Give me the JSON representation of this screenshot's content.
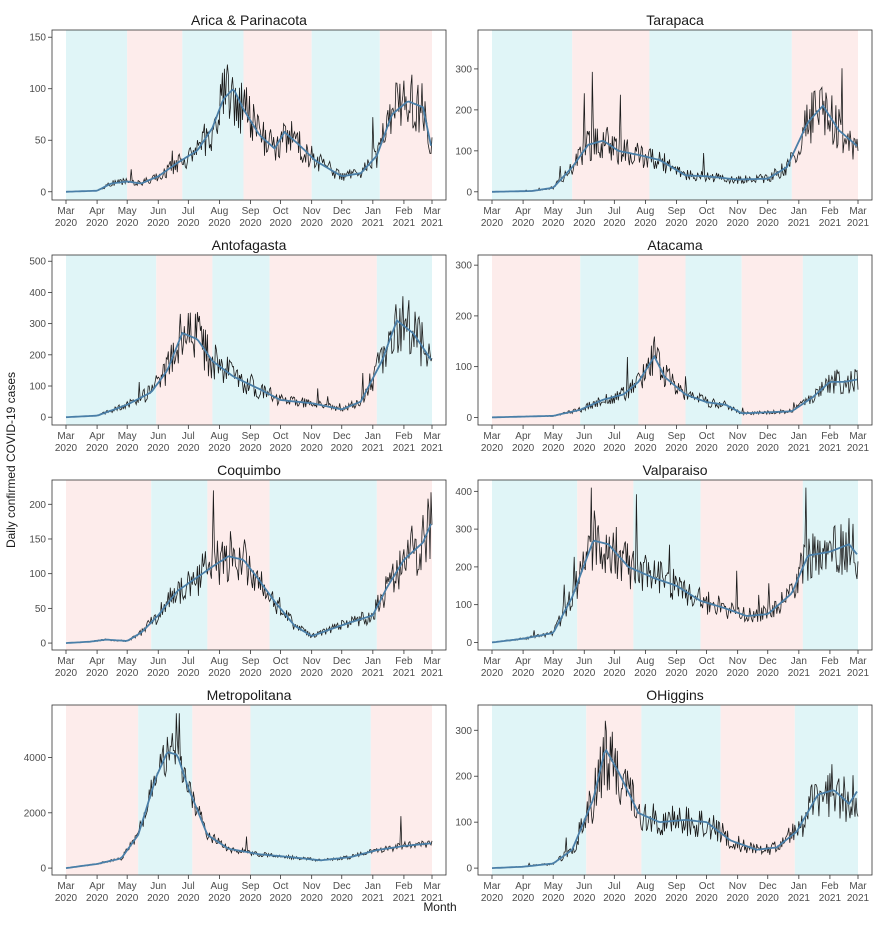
{
  "figure": {
    "ylabel": "Daily confirmed COVID-19 cases",
    "xlabel": "Month",
    "band_colors": {
      "red": "#fdeceb",
      "blue": "#e0f5f7"
    },
    "line_colors": {
      "daily": "#1c1c1c",
      "smooth": "#4a7fa8"
    },
    "x_tick_labels": [
      [
        "Mar",
        "2020"
      ],
      [
        "Apr",
        "2020"
      ],
      [
        "May",
        "2020"
      ],
      [
        "Jun",
        "2020"
      ],
      [
        "Jul",
        "2020"
      ],
      [
        "Aug",
        "2020"
      ],
      [
        "Sep",
        "2020"
      ],
      [
        "Oct",
        "2020"
      ],
      [
        "Nov",
        "2020"
      ],
      [
        "Dec",
        "2020"
      ],
      [
        "Jan",
        "2021"
      ],
      [
        "Feb",
        "2021"
      ],
      [
        "Mar",
        "2021"
      ]
    ]
  },
  "chart_data": [
    {
      "type": "line",
      "title": "Arica & Parinacota",
      "x_range": [
        "2020-03-01",
        "2021-03-01"
      ],
      "ylim": [
        -8,
        157
      ],
      "yticks": [
        0,
        50,
        100,
        150
      ],
      "bands": [
        {
          "start": "2020-03-01",
          "end": "2020-05-01",
          "color": "blue"
        },
        {
          "start": "2020-05-01",
          "end": "2020-06-25",
          "color": "red"
        },
        {
          "start": "2020-06-25",
          "end": "2020-08-25",
          "color": "blue"
        },
        {
          "start": "2020-08-25",
          "end": "2020-11-01",
          "color": "red"
        },
        {
          "start": "2020-11-01",
          "end": "2021-01-08",
          "color": "blue"
        },
        {
          "start": "2021-01-08",
          "end": "2021-03-01",
          "color": "red"
        }
      ],
      "trend": [
        [
          "2020-03-01",
          0
        ],
        [
          "2020-04-01",
          1
        ],
        [
          "2020-04-15",
          8
        ],
        [
          "2020-05-01",
          10
        ],
        [
          "2020-05-15",
          8
        ],
        [
          "2020-06-01",
          15
        ],
        [
          "2020-06-20",
          28
        ],
        [
          "2020-07-10",
          40
        ],
        [
          "2020-07-25",
          62
        ],
        [
          "2020-08-05",
          90
        ],
        [
          "2020-08-15",
          100
        ],
        [
          "2020-08-25",
          80
        ],
        [
          "2020-09-10",
          55
        ],
        [
          "2020-09-25",
          42
        ],
        [
          "2020-10-05",
          58
        ],
        [
          "2020-10-20",
          45
        ],
        [
          "2020-11-05",
          30
        ],
        [
          "2020-12-01",
          15
        ],
        [
          "2020-12-20",
          18
        ],
        [
          "2021-01-05",
          35
        ],
        [
          "2021-01-20",
          75
        ],
        [
          "2021-02-05",
          88
        ],
        [
          "2021-02-20",
          82
        ],
        [
          "2021-03-01",
          40
        ]
      ],
      "noise": 0.35,
      "peak": 150
    },
    {
      "type": "line",
      "title": "Tarapaca",
      "x_range": [
        "2020-03-01",
        "2021-03-01"
      ],
      "ylim": [
        -20,
        395
      ],
      "yticks": [
        0,
        100,
        200,
        300
      ],
      "bands": [
        {
          "start": "2020-03-01",
          "end": "2020-05-20",
          "color": "blue"
        },
        {
          "start": "2020-05-20",
          "end": "2020-08-05",
          "color": "red"
        },
        {
          "start": "2020-08-05",
          "end": "2020-12-25",
          "color": "blue"
        },
        {
          "start": "2020-12-25",
          "end": "2021-03-01",
          "color": "red"
        }
      ],
      "trend": [
        [
          "2020-03-01",
          0
        ],
        [
          "2020-04-10",
          2
        ],
        [
          "2020-05-01",
          10
        ],
        [
          "2020-05-20",
          60
        ],
        [
          "2020-06-05",
          115
        ],
        [
          "2020-06-20",
          125
        ],
        [
          "2020-07-05",
          100
        ],
        [
          "2020-07-25",
          90
        ],
        [
          "2020-08-15",
          78
        ],
        [
          "2020-09-10",
          40
        ],
        [
          "2020-10-01",
          38
        ],
        [
          "2020-11-01",
          30
        ],
        [
          "2020-12-01",
          32
        ],
        [
          "2020-12-20",
          60
        ],
        [
          "2021-01-10",
          170
        ],
        [
          "2021-01-25",
          210
        ],
        [
          "2021-02-10",
          150
        ],
        [
          "2021-03-01",
          110
        ]
      ],
      "noise": 0.35,
      "peak": 380
    },
    {
      "type": "line",
      "title": "Antofagasta",
      "x_range": [
        "2020-03-01",
        "2021-03-01"
      ],
      "ylim": [
        -25,
        520
      ],
      "yticks": [
        0,
        100,
        200,
        300,
        400,
        500
      ],
      "bands": [
        {
          "start": "2020-03-01",
          "end": "2020-05-30",
          "color": "blue"
        },
        {
          "start": "2020-05-30",
          "end": "2020-07-25",
          "color": "red"
        },
        {
          "start": "2020-07-25",
          "end": "2020-09-20",
          "color": "blue"
        },
        {
          "start": "2020-09-20",
          "end": "2021-01-05",
          "color": "red"
        },
        {
          "start": "2021-01-05",
          "end": "2021-03-01",
          "color": "blue"
        }
      ],
      "trend": [
        [
          "2020-03-01",
          0
        ],
        [
          "2020-04-01",
          5
        ],
        [
          "2020-05-01",
          40
        ],
        [
          "2020-05-25",
          80
        ],
        [
          "2020-06-10",
          150
        ],
        [
          "2020-06-25",
          270
        ],
        [
          "2020-07-10",
          250
        ],
        [
          "2020-07-25",
          180
        ],
        [
          "2020-08-15",
          130
        ],
        [
          "2020-09-10",
          90
        ],
        [
          "2020-10-01",
          55
        ],
        [
          "2020-11-01",
          45
        ],
        [
          "2020-12-01",
          25
        ],
        [
          "2020-12-20",
          50
        ],
        [
          "2021-01-10",
          180
        ],
        [
          "2021-01-25",
          310
        ],
        [
          "2021-02-10",
          270
        ],
        [
          "2021-03-01",
          180
        ]
      ],
      "noise": 0.35,
      "peak": 500
    },
    {
      "type": "line",
      "title": "Atacama",
      "x_range": [
        "2020-03-01",
        "2021-03-01"
      ],
      "ylim": [
        -15,
        320
      ],
      "yticks": [
        0,
        100,
        200,
        300
      ],
      "bands": [
        {
          "start": "2020-03-01",
          "end": "2020-05-28",
          "color": "red"
        },
        {
          "start": "2020-05-28",
          "end": "2020-07-25",
          "color": "blue"
        },
        {
          "start": "2020-07-25",
          "end": "2020-09-10",
          "color": "red"
        },
        {
          "start": "2020-09-10",
          "end": "2020-11-05",
          "color": "blue"
        },
        {
          "start": "2020-11-05",
          "end": "2021-01-05",
          "color": "red"
        },
        {
          "start": "2021-01-05",
          "end": "2021-03-01",
          "color": "blue"
        }
      ],
      "trend": [
        [
          "2020-03-01",
          0
        ],
        [
          "2020-05-01",
          3
        ],
        [
          "2020-05-28",
          15
        ],
        [
          "2020-06-20",
          35
        ],
        [
          "2020-07-10",
          45
        ],
        [
          "2020-07-25",
          70
        ],
        [
          "2020-08-10",
          120
        ],
        [
          "2020-08-20",
          80
        ],
        [
          "2020-09-10",
          45
        ],
        [
          "2020-10-01",
          30
        ],
        [
          "2020-10-20",
          25
        ],
        [
          "2020-11-05",
          8
        ],
        [
          "2020-12-01",
          10
        ],
        [
          "2020-12-25",
          12
        ],
        [
          "2021-01-15",
          40
        ],
        [
          "2021-02-01",
          70
        ],
        [
          "2021-02-15",
          70
        ],
        [
          "2021-03-01",
          75
        ]
      ],
      "noise": 0.35,
      "peak": 300
    },
    {
      "type": "line",
      "title": "Coquimbo",
      "x_range": [
        "2020-03-01",
        "2021-03-01"
      ],
      "ylim": [
        -10,
        235
      ],
      "yticks": [
        0,
        50,
        100,
        150,
        200
      ],
      "bands": [
        {
          "start": "2020-03-01",
          "end": "2020-05-25",
          "color": "red"
        },
        {
          "start": "2020-05-25",
          "end": "2020-07-20",
          "color": "blue"
        },
        {
          "start": "2020-07-20",
          "end": "2020-09-20",
          "color": "red"
        },
        {
          "start": "2020-09-20",
          "end": "2021-01-05",
          "color": "blue"
        },
        {
          "start": "2021-01-05",
          "end": "2021-03-01",
          "color": "red"
        }
      ],
      "trend": [
        [
          "2020-03-01",
          0
        ],
        [
          "2020-03-25",
          2
        ],
        [
          "2020-04-10",
          5
        ],
        [
          "2020-05-01",
          3
        ],
        [
          "2020-05-15",
          15
        ],
        [
          "2020-06-01",
          40
        ],
        [
          "2020-06-20",
          75
        ],
        [
          "2020-07-10",
          95
        ],
        [
          "2020-07-25",
          110
        ],
        [
          "2020-08-10",
          125
        ],
        [
          "2020-08-25",
          120
        ],
        [
          "2020-09-10",
          90
        ],
        [
          "2020-09-25",
          60
        ],
        [
          "2020-10-15",
          25
        ],
        [
          "2020-11-01",
          10
        ],
        [
          "2020-11-20",
          20
        ],
        [
          "2020-12-10",
          30
        ],
        [
          "2021-01-01",
          40
        ],
        [
          "2021-01-15",
          80
        ],
        [
          "2021-02-01",
          120
        ],
        [
          "2021-02-20",
          145
        ],
        [
          "2021-03-01",
          175
        ]
      ],
      "noise": 0.3,
      "peak": 220
    },
    {
      "type": "line",
      "title": "Valparaiso",
      "x_range": [
        "2020-03-01",
        "2021-03-01"
      ],
      "ylim": [
        -20,
        430
      ],
      "yticks": [
        0,
        100,
        200,
        300,
        400
      ],
      "bands": [
        {
          "start": "2020-03-01",
          "end": "2020-05-25",
          "color": "blue"
        },
        {
          "start": "2020-05-25",
          "end": "2020-07-20",
          "color": "red"
        },
        {
          "start": "2020-07-20",
          "end": "2020-09-25",
          "color": "blue"
        },
        {
          "start": "2020-09-25",
          "end": "2021-01-05",
          "color": "red"
        },
        {
          "start": "2021-01-05",
          "end": "2021-03-01",
          "color": "blue"
        }
      ],
      "trend": [
        [
          "2020-03-01",
          0
        ],
        [
          "2020-04-01",
          10
        ],
        [
          "2020-05-01",
          25
        ],
        [
          "2020-05-20",
          120
        ],
        [
          "2020-06-10",
          270
        ],
        [
          "2020-06-25",
          260
        ],
        [
          "2020-07-15",
          200
        ],
        [
          "2020-08-10",
          170
        ],
        [
          "2020-09-01",
          150
        ],
        [
          "2020-09-25",
          110
        ],
        [
          "2020-10-20",
          90
        ],
        [
          "2020-11-10",
          70
        ],
        [
          "2020-12-01",
          75
        ],
        [
          "2020-12-25",
          130
        ],
        [
          "2021-01-10",
          230
        ],
        [
          "2021-02-01",
          240
        ],
        [
          "2021-02-20",
          260
        ],
        [
          "2021-03-01",
          230
        ]
      ],
      "noise": 0.3,
      "peak": 410
    },
    {
      "type": "line",
      "title": "Metropolitana",
      "x_range": [
        "2020-03-01",
        "2021-03-01"
      ],
      "ylim": [
        -250,
        5900
      ],
      "yticks": [
        0,
        2000,
        4000
      ],
      "bands": [
        {
          "start": "2020-03-01",
          "end": "2020-05-12",
          "color": "red"
        },
        {
          "start": "2020-05-12",
          "end": "2020-07-05",
          "color": "blue"
        },
        {
          "start": "2020-07-05",
          "end": "2020-09-01",
          "color": "red"
        },
        {
          "start": "2020-09-01",
          "end": "2020-12-30",
          "color": "blue"
        },
        {
          "start": "2020-12-30",
          "end": "2021-03-01",
          "color": "red"
        }
      ],
      "trend": [
        [
          "2020-03-01",
          0
        ],
        [
          "2020-04-01",
          150
        ],
        [
          "2020-04-25",
          350
        ],
        [
          "2020-05-12",
          1200
        ],
        [
          "2020-05-30",
          3300
        ],
        [
          "2020-06-10",
          4200
        ],
        [
          "2020-06-20",
          4100
        ],
        [
          "2020-07-01",
          2900
        ],
        [
          "2020-07-20",
          1200
        ],
        [
          "2020-08-10",
          700
        ],
        [
          "2020-09-10",
          500
        ],
        [
          "2020-10-10",
          400
        ],
        [
          "2020-11-10",
          280
        ],
        [
          "2020-12-10",
          400
        ],
        [
          "2021-01-05",
          650
        ],
        [
          "2021-02-01",
          800
        ],
        [
          "2021-03-01",
          900
        ]
      ],
      "noise": 0.18,
      "peak": 5600
    },
    {
      "type": "line",
      "title": "OHiggins",
      "x_range": [
        "2020-03-01",
        "2021-03-01"
      ],
      "ylim": [
        -15,
        355
      ],
      "yticks": [
        0,
        100,
        200,
        300
      ],
      "bands": [
        {
          "start": "2020-03-01",
          "end": "2020-06-03",
          "color": "blue"
        },
        {
          "start": "2020-06-03",
          "end": "2020-07-28",
          "color": "red"
        },
        {
          "start": "2020-07-28",
          "end": "2020-10-15",
          "color": "blue"
        },
        {
          "start": "2020-10-15",
          "end": "2020-12-28",
          "color": "red"
        },
        {
          "start": "2020-12-28",
          "end": "2021-03-01",
          "color": "blue"
        }
      ],
      "trend": [
        [
          "2020-03-01",
          0
        ],
        [
          "2020-04-01",
          3
        ],
        [
          "2020-05-01",
          10
        ],
        [
          "2020-05-20",
          40
        ],
        [
          "2020-06-10",
          150
        ],
        [
          "2020-06-22",
          260
        ],
        [
          "2020-07-05",
          210
        ],
        [
          "2020-07-25",
          120
        ],
        [
          "2020-08-15",
          100
        ],
        [
          "2020-09-10",
          105
        ],
        [
          "2020-10-01",
          100
        ],
        [
          "2020-10-25",
          60
        ],
        [
          "2020-11-20",
          40
        ],
        [
          "2020-12-10",
          45
        ],
        [
          "2020-12-30",
          80
        ],
        [
          "2021-01-20",
          160
        ],
        [
          "2021-02-05",
          170
        ],
        [
          "2021-02-20",
          140
        ],
        [
          "2021-03-01",
          170
        ]
      ],
      "noise": 0.35,
      "peak": 340
    }
  ]
}
